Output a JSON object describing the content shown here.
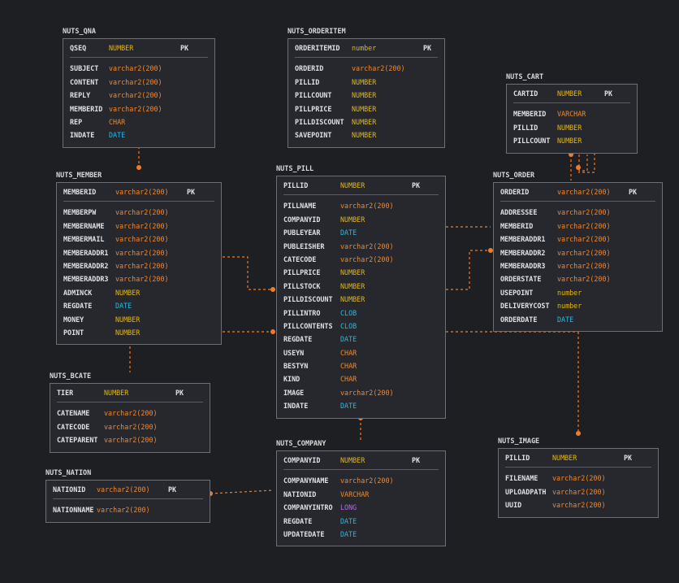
{
  "colors": {
    "background": "#1e1f22",
    "connector": "#f07c2a",
    "number": "#e2b714",
    "varchar": "#f0892e",
    "date": "#2ab9e0",
    "long": "#b06ce8"
  },
  "entities": [
    {
      "id": "nuts_qna",
      "title": "NUTS_QNA",
      "pk": [
        {
          "name": "QSEQ",
          "type": "NUMBER",
          "key": "PK"
        }
      ],
      "cols": [
        {
          "name": "SUBJECT",
          "type": "varchar2(200)"
        },
        {
          "name": "CONTENT",
          "type": "varchar2(200)"
        },
        {
          "name": "REPLY",
          "type": "varchar2(200)"
        },
        {
          "name": "MEMBERID",
          "type": "varchar2(200)"
        },
        {
          "name": "REP",
          "type": "CHAR"
        },
        {
          "name": "INDATE",
          "type": "DATE"
        }
      ]
    },
    {
      "id": "nuts_orderitem",
      "title": "NUTS_ORDERITEM",
      "pk": [
        {
          "name": "ORDERITEMID",
          "type": "number",
          "key": "PK"
        }
      ],
      "cols": [
        {
          "name": "ORDERID",
          "type": "varchar2(200)"
        },
        {
          "name": "PILLID",
          "type": "NUMBER"
        },
        {
          "name": "PILLCOUNT",
          "type": "NUMBER"
        },
        {
          "name": "PILLPRICE",
          "type": "NUMBER"
        },
        {
          "name": "PILLDISCOUNT",
          "type": "NUMBER"
        },
        {
          "name": "SAVEPOINT",
          "type": "NUMBER"
        }
      ]
    },
    {
      "id": "nuts_cart",
      "title": "NUTS_CART",
      "pk": [
        {
          "name": "CARTID",
          "type": "NUMBER",
          "key": "PK"
        }
      ],
      "cols": [
        {
          "name": "MEMBERID",
          "type": "VARCHAR"
        },
        {
          "name": "PILLID",
          "type": "NUMBER"
        },
        {
          "name": "PILLCOUNT",
          "type": "NUMBER"
        }
      ]
    },
    {
      "id": "nuts_member",
      "title": "NUTS_MEMBER",
      "pk": [
        {
          "name": "MEMBERID",
          "type": "varchar2(200)",
          "key": "PK"
        }
      ],
      "cols": [
        {
          "name": "MEMBERPW",
          "type": "varchar2(200)"
        },
        {
          "name": "MEMBERNAME",
          "type": "varchar2(200)"
        },
        {
          "name": "MEMBERMAIL",
          "type": "varchar2(200)"
        },
        {
          "name": "MEMBERADDR1",
          "type": "varchar2(200)"
        },
        {
          "name": "MEMBERADDR2",
          "type": "varchar2(200)"
        },
        {
          "name": "MEMBERADDR3",
          "type": "varchar2(200)"
        },
        {
          "name": "ADMINCK",
          "type": "NUMBER"
        },
        {
          "name": "REGDATE",
          "type": "DATE"
        },
        {
          "name": "MONEY",
          "type": "NUMBER"
        },
        {
          "name": "POINT",
          "type": "NUMBER"
        }
      ]
    },
    {
      "id": "nuts_pill",
      "title": "NUTS_PILL",
      "pk": [
        {
          "name": "PILLID",
          "type": "NUMBER",
          "key": "PK"
        }
      ],
      "cols": [
        {
          "name": "PILLNAME",
          "type": "varchar2(200)"
        },
        {
          "name": "COMPANYID",
          "type": "NUMBER"
        },
        {
          "name": "PUBLEYEAR",
          "type": "DATE"
        },
        {
          "name": "PUBLEISHER",
          "type": "varchar2(200)"
        },
        {
          "name": "CATECODE",
          "type": "varchar2(200)"
        },
        {
          "name": "PILLPRICE",
          "type": "NUMBER"
        },
        {
          "name": "PILLSTOCK",
          "type": "NUMBER"
        },
        {
          "name": "PILLDISCOUNT",
          "type": "NUMBER"
        },
        {
          "name": "PILLINTRO",
          "type": "CLOB"
        },
        {
          "name": "PILLCONTENTS",
          "type": "CLOB"
        },
        {
          "name": "REGDATE",
          "type": "DATE"
        },
        {
          "name": "USEYN",
          "type": "CHAR"
        },
        {
          "name": "BESTYN",
          "type": "CHAR"
        },
        {
          "name": "KIND",
          "type": "CHAR"
        },
        {
          "name": "IMAGE",
          "type": "varchar2(200)"
        },
        {
          "name": "INDATE",
          "type": "DATE"
        }
      ]
    },
    {
      "id": "nuts_order",
      "title": "NUTS_ORDER",
      "pk": [
        {
          "name": "ORDERID",
          "type": "varchar2(200)",
          "key": "PK"
        }
      ],
      "cols": [
        {
          "name": "ADDRESSEE",
          "type": "varchar2(200)"
        },
        {
          "name": "MEMBERID",
          "type": "varchar2(200)"
        },
        {
          "name": "MEMBERADDR1",
          "type": "varchar2(200)"
        },
        {
          "name": "MEMBERADDR2",
          "type": "varchar2(200)"
        },
        {
          "name": "MEMBERADDR3",
          "type": "varchar2(200)"
        },
        {
          "name": "ORDERSTATE",
          "type": "varchar2(200)"
        },
        {
          "name": "USEPOINT",
          "type": "number"
        },
        {
          "name": "DELIVERYCOST",
          "type": "number"
        },
        {
          "name": "ORDERDATE",
          "type": "DATE"
        }
      ]
    },
    {
      "id": "nuts_bcate",
      "title": "NUTS_BCATE",
      "pk": [
        {
          "name": "TIER",
          "type": "NUMBER",
          "key": "PK"
        }
      ],
      "cols": [
        {
          "name": "CATENAME",
          "type": "varchar2(200)"
        },
        {
          "name": "CATECODE",
          "type": "varchar2(200)"
        },
        {
          "name": "CATEPARENT",
          "type": "varchar2(200)"
        }
      ]
    },
    {
      "id": "nuts_nation",
      "title": "NUTS_NATION",
      "pk": [
        {
          "name": "NATIONID",
          "type": "varchar2(200)",
          "key": "PK"
        }
      ],
      "cols": [
        {
          "name": "NATIONNAME",
          "type": "varchar2(200)"
        }
      ]
    },
    {
      "id": "nuts_company",
      "title": "NUTS_COMPANY",
      "pk": [
        {
          "name": "COMPANYID",
          "type": "NUMBER",
          "key": "PK"
        }
      ],
      "cols": [
        {
          "name": "COMPANYNAME",
          "type": "varchar2(200)"
        },
        {
          "name": "NATIONID",
          "type": "VARCHAR"
        },
        {
          "name": "COMPANYINTRO",
          "type": "LONG"
        },
        {
          "name": "REGDATE",
          "type": "DATE"
        },
        {
          "name": "UPDATEDATE",
          "type": "DATE"
        }
      ]
    },
    {
      "id": "nuts_image",
      "title": "NUTS_IMAGE",
      "pk": [
        {
          "name": "PILLID",
          "type": "NUMBER",
          "key": "PK"
        }
      ],
      "cols": [
        {
          "name": "FILENAME",
          "type": "varchar2(200)"
        },
        {
          "name": "UPLOADPATH",
          "type": "varchar2(200)"
        },
        {
          "name": "UUID",
          "type": "varchar2(200)"
        }
      ]
    }
  ]
}
